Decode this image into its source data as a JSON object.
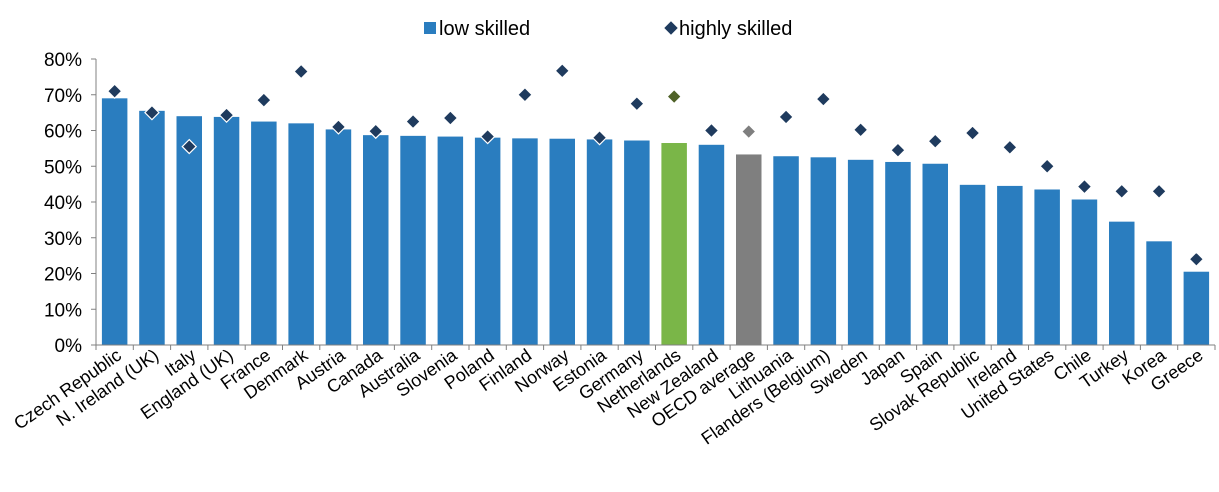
{
  "chart_data": {
    "type": "bar",
    "title": "",
    "xlabel": "",
    "ylabel": "",
    "ylim": [
      0,
      0.8
    ],
    "y_ticks": [
      "0%",
      "10%",
      "20%",
      "30%",
      "40%",
      "50%",
      "60%",
      "70%",
      "80%"
    ],
    "grid": false,
    "legend": "top-center",
    "categories": [
      "Czech Republic",
      "N. Ireland (UK)",
      "Italy",
      "England (UK)",
      "France",
      "Denmark",
      "Austria",
      "Canada",
      "Australia",
      "Slovenia",
      "Poland",
      "Finland",
      "Norway",
      "Estonia",
      "Germany",
      "Netherlands",
      "New Zealand",
      "OECD average",
      "Lithuania",
      "Flanders (Belgium)",
      "Sweden",
      "Japan",
      "Spain",
      "Slovak Republic",
      "Ireland",
      "United States",
      "Chile",
      "Turkey",
      "Korea",
      "Greece"
    ],
    "series": [
      {
        "name": "low skilled",
        "marker": "bar",
        "values": [
          0.69,
          0.655,
          0.64,
          0.638,
          0.625,
          0.62,
          0.603,
          0.587,
          0.585,
          0.583,
          0.58,
          0.578,
          0.577,
          0.575,
          0.572,
          0.565,
          0.56,
          0.533,
          0.528,
          0.525,
          0.518,
          0.512,
          0.507,
          0.448,
          0.445,
          0.435,
          0.407,
          0.345,
          0.29,
          0.205
        ]
      },
      {
        "name": "highly skilled",
        "marker": "diamond",
        "values": [
          0.71,
          0.65,
          0.555,
          0.643,
          0.685,
          0.765,
          0.61,
          0.598,
          0.625,
          0.635,
          0.583,
          0.7,
          0.767,
          0.58,
          0.675,
          0.695,
          0.6,
          0.597,
          0.638,
          0.688,
          0.602,
          0.545,
          0.57,
          0.593,
          0.553,
          0.5,
          0.443,
          0.43,
          0.43,
          0.24
        ]
      }
    ],
    "colors": {
      "bar": "#2a7dbf",
      "bar_highlight_netherlands": "#7ab648",
      "bar_highlight_oecd": "#7f7f7f",
      "diamond": "#1f3b5e",
      "diamond_highlight_netherlands": "#4f6228",
      "diamond_highlight_oecd": "#7f7f7f",
      "axis": "#808080"
    },
    "highlights": {
      "Netherlands": "netherlands",
      "OECD average": "oecd"
    }
  }
}
